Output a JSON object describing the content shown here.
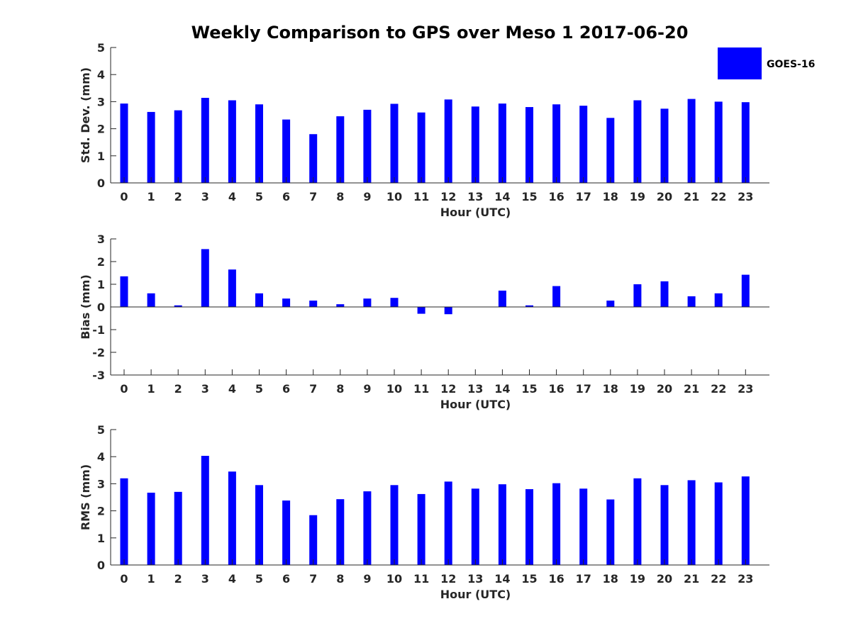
{
  "title": "Weekly Comparison to GPS over Meso 1 2017-06-20",
  "colors": {
    "bar": "#0000ff",
    "axis": "#262626"
  },
  "legend": {
    "label": "GOES-16",
    "placement": "top-right"
  },
  "chart_data": [
    {
      "type": "bar",
      "xlabel": "Hour (UTC)",
      "ylabel": "Std. Dev. (mm)",
      "ylim": [
        0,
        5
      ],
      "yticks": [
        0,
        1,
        2,
        3,
        4,
        5
      ],
      "categories": [
        "0",
        "1",
        "2",
        "3",
        "4",
        "5",
        "6",
        "7",
        "8",
        "9",
        "10",
        "11",
        "12",
        "13",
        "14",
        "15",
        "16",
        "17",
        "18",
        "19",
        "20",
        "21",
        "22",
        "23"
      ],
      "series": [
        {
          "name": "GOES-16",
          "values": [
            2.93,
            2.62,
            2.68,
            3.14,
            3.05,
            2.9,
            2.34,
            1.8,
            2.46,
            2.7,
            2.92,
            2.6,
            3.08,
            2.82,
            2.93,
            2.8,
            2.9,
            2.85,
            2.4,
            3.05,
            2.74,
            3.1,
            3.0,
            2.98
          ]
        }
      ]
    },
    {
      "type": "bar",
      "xlabel": "Hour (UTC)",
      "ylabel": "Bias (mm)",
      "ylim": [
        -3,
        3
      ],
      "yticks": [
        -3,
        -2,
        -1,
        0,
        1,
        2,
        3
      ],
      "categories": [
        "0",
        "1",
        "2",
        "3",
        "4",
        "5",
        "6",
        "7",
        "8",
        "9",
        "10",
        "11",
        "12",
        "13",
        "14",
        "15",
        "16",
        "17",
        "18",
        "19",
        "20",
        "21",
        "22",
        "23"
      ],
      "series": [
        {
          "name": "GOES-16",
          "values": [
            1.35,
            0.6,
            0.07,
            2.55,
            1.65,
            0.6,
            0.37,
            0.28,
            0.12,
            0.37,
            0.4,
            -0.3,
            -0.32,
            0.0,
            0.72,
            0.07,
            0.92,
            0.0,
            0.28,
            1.0,
            1.13,
            0.47,
            0.6,
            1.42
          ]
        }
      ]
    },
    {
      "type": "bar",
      "xlabel": "Hour (UTC)",
      "ylabel": "RMS (mm)",
      "ylim": [
        0,
        5
      ],
      "yticks": [
        0,
        1,
        2,
        3,
        4,
        5
      ],
      "categories": [
        "0",
        "1",
        "2",
        "3",
        "4",
        "5",
        "6",
        "7",
        "8",
        "9",
        "10",
        "11",
        "12",
        "13",
        "14",
        "15",
        "16",
        "17",
        "18",
        "19",
        "20",
        "21",
        "22",
        "23"
      ],
      "series": [
        {
          "name": "GOES-16",
          "values": [
            3.2,
            2.67,
            2.7,
            4.03,
            3.45,
            2.95,
            2.38,
            1.84,
            2.43,
            2.72,
            2.95,
            2.62,
            3.08,
            2.82,
            2.98,
            2.8,
            3.02,
            2.82,
            2.42,
            3.2,
            2.95,
            3.13,
            3.05,
            3.27
          ]
        }
      ]
    }
  ]
}
